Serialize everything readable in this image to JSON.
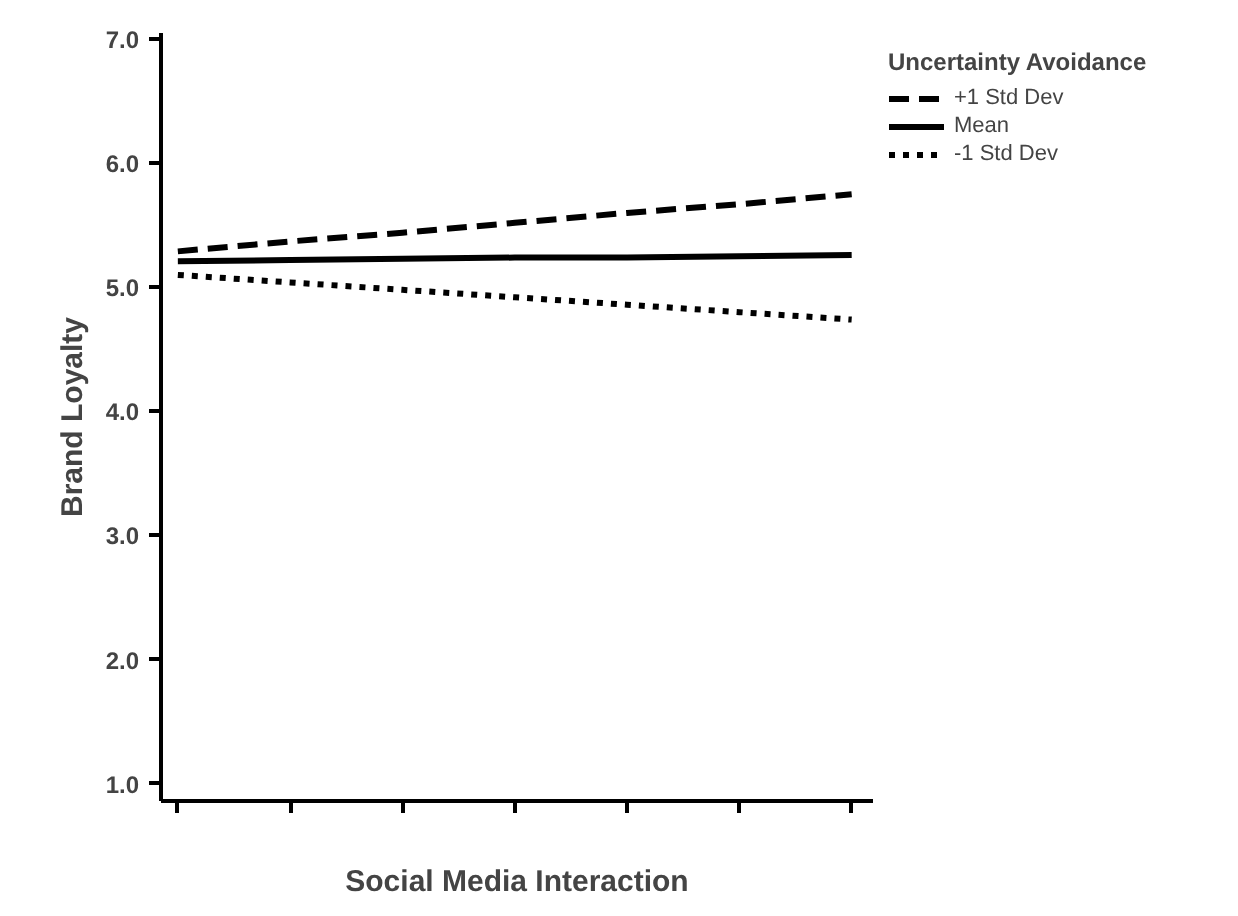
{
  "chart_data": {
    "type": "line",
    "xlabel": "Social Media Interaction",
    "ylabel": "Brand Loyalty",
    "legend_title": "Uncertainty Avoidance",
    "legend": "top right",
    "grid": false,
    "marker": "none",
    "categories": [
      null,
      null,
      null,
      null,
      null,
      null,
      null
    ],
    "ylim": [
      0.86,
      7.05
    ],
    "yticks": [
      {
        "value": 1,
        "label": "1.0"
      },
      {
        "value": 2,
        "label": "2.0"
      },
      {
        "value": 3,
        "label": "3.0"
      },
      {
        "value": 4,
        "label": "4.0"
      },
      {
        "value": 5,
        "label": "5.0"
      },
      {
        "value": 6,
        "label": "6.0"
      },
      {
        "value": 7,
        "label": "7.0"
      }
    ],
    "series": [
      {
        "name": "+1 Std Dev",
        "color": "#000000",
        "line_style": "dashed",
        "values": [
          5.29,
          5.37,
          5.44,
          5.52,
          5.6,
          5.67,
          5.75
        ]
      },
      {
        "name": "Mean",
        "color": "#000000",
        "line_style": "solid",
        "values": [
          5.21,
          5.22,
          5.23,
          5.24,
          5.24,
          5.25,
          5.26
        ]
      },
      {
        "name": "-1 Std Dev",
        "color": "#000000",
        "line_style": "dotted",
        "values": [
          5.1,
          5.04,
          4.98,
          4.92,
          4.86,
          4.8,
          4.74
        ]
      }
    ]
  }
}
